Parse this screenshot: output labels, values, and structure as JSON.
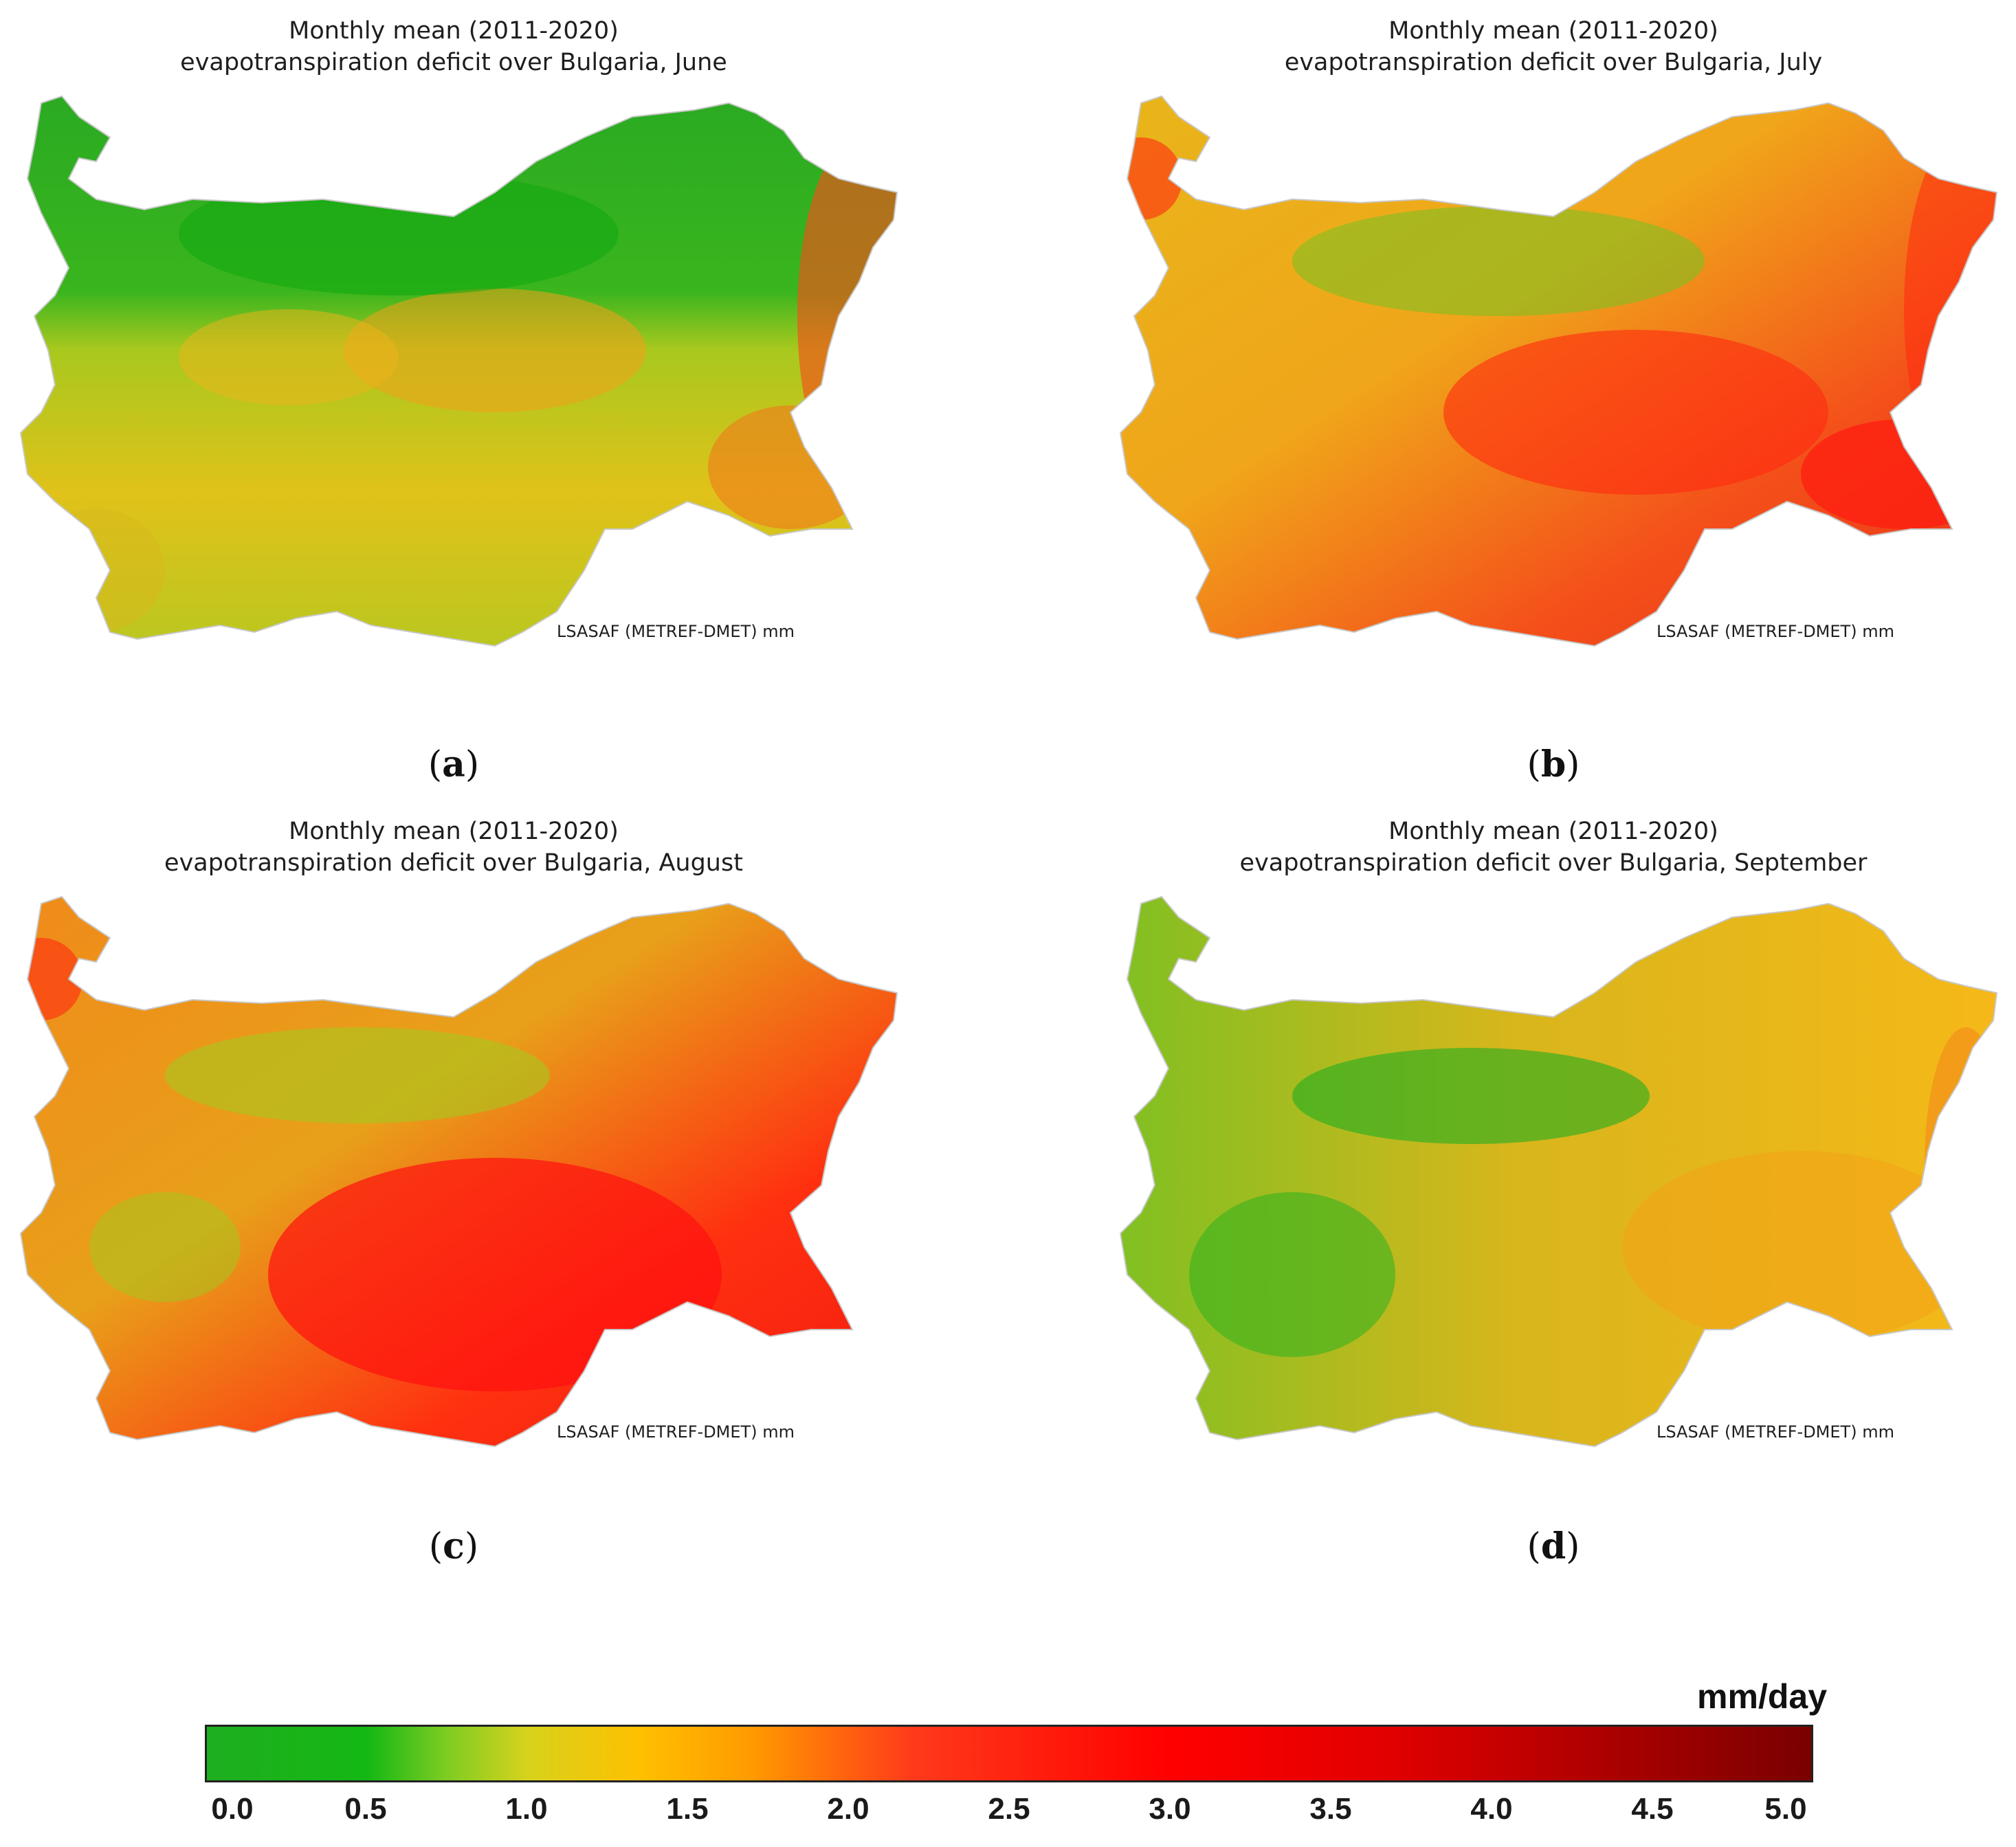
{
  "panels": [
    {
      "id": "a",
      "title_line1": "Monthly mean (2011-2020)",
      "title_line2": "evapotranspiration deficit over Bulgaria, June",
      "credit": "LSASAF (METREF-DMET) mm",
      "label_open": "(",
      "label_letter": "a",
      "label_close": ")",
      "month": "June"
    },
    {
      "id": "b",
      "title_line1": "Monthly mean (2011-2020)",
      "title_line2": "evapotranspiration deficit over Bulgaria, July",
      "credit": "LSASAF (METREF-DMET) mm",
      "label_open": "(",
      "label_letter": "b",
      "label_close": ")",
      "month": "July"
    },
    {
      "id": "c",
      "title_line1": "Monthly mean (2011-2020)",
      "title_line2": "evapotranspiration deficit over Bulgaria, August",
      "credit": "LSASAF (METREF-DMET) mm",
      "label_open": "(",
      "label_letter": "c",
      "label_close": ")",
      "month": "August"
    },
    {
      "id": "d",
      "title_line1": "Monthly mean (2011-2020)",
      "title_line2": "evapotranspiration deficit over Bulgaria, September",
      "credit": "LSASAF (METREF-DMET) mm",
      "label_open": "(",
      "label_letter": "d",
      "label_close": ")",
      "month": "September"
    }
  ],
  "legend": {
    "unit": "mm/day",
    "ticks": [
      "0.0",
      "0.5",
      "1.0",
      "1.5",
      "2.0",
      "2.5",
      "3.0",
      "3.5",
      "4.0",
      "4.5",
      "5.0"
    ],
    "colors": [
      {
        "value": 0.0,
        "color": "#1fae1f"
      },
      {
        "value": 0.5,
        "color": "#14b814"
      },
      {
        "value": 0.75,
        "color": "#7fcc22"
      },
      {
        "value": 1.0,
        "color": "#d7d21c"
      },
      {
        "value": 1.35,
        "color": "#ffc000"
      },
      {
        "value": 1.7,
        "color": "#ff9a00"
      },
      {
        "value": 2.2,
        "color": "#ff3a1a"
      },
      {
        "value": 3.0,
        "color": "#ff0000"
      },
      {
        "value": 3.7,
        "color": "#e00000"
      },
      {
        "value": 5.0,
        "color": "#7a0000"
      }
    ]
  }
}
